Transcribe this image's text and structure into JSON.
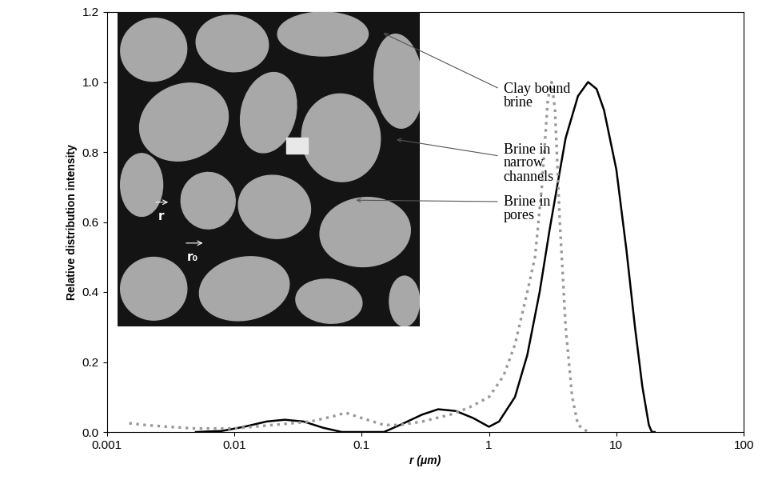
{
  "chart_data": {
    "type": "line",
    "x_label": "r (μm)",
    "y_label": "Relative distribution intensity",
    "log": "x",
    "grid": false,
    "xlim": [
      0.001,
      100
    ],
    "xticks": [
      0.001,
      0.01,
      0.1,
      1,
      10,
      100
    ],
    "ylim": [
      0,
      1.2
    ],
    "yticks": [
      {
        "value": 0,
        "label": "0.0"
      },
      {
        "value": 0.2,
        "label": "0.2"
      },
      {
        "value": 0.4,
        "label": "0.4"
      },
      {
        "value": 0.6,
        "label": "0.6"
      },
      {
        "value": 0.8,
        "label": "0.8"
      },
      {
        "value": 1.0,
        "label": "1.0"
      },
      {
        "value": 1.2,
        "label": "1.2"
      }
    ],
    "series": [
      {
        "color": "#000000",
        "line_style": "solid",
        "x": [
          0.005,
          0.008,
          0.012,
          0.018,
          0.025,
          0.035,
          0.05,
          0.07,
          0.15,
          0.2,
          0.3,
          0.4,
          0.55,
          0.75,
          1.0,
          1.2,
          1.6,
          2,
          2.5,
          3,
          3.5,
          4,
          5,
          6,
          7,
          8,
          10,
          12,
          14,
          16,
          18,
          19,
          20
        ],
        "values": [
          0.0,
          0.003,
          0.015,
          0.03,
          0.035,
          0.03,
          0.012,
          0.0,
          0.0,
          0.02,
          0.05,
          0.065,
          0.06,
          0.04,
          0.015,
          0.03,
          0.1,
          0.22,
          0.4,
          0.58,
          0.72,
          0.84,
          0.96,
          1.0,
          0.98,
          0.92,
          0.75,
          0.52,
          0.3,
          0.13,
          0.02,
          0.0,
          0.0
        ]
      },
      {
        "color": "#999999",
        "line_style": "dotted",
        "x": [
          0.0015,
          0.002,
          0.003,
          0.005,
          0.01,
          0.02,
          0.04,
          0.06,
          0.075,
          0.1,
          0.15,
          0.2,
          0.3,
          0.5,
          0.7,
          1.0,
          1.3,
          1.6,
          2.0,
          2.3,
          2.6,
          2.9,
          3.1,
          3.3,
          3.6,
          4,
          4.5,
          5,
          6
        ],
        "values": [
          0.025,
          0.02,
          0.015,
          0.01,
          0.01,
          0.02,
          0.03,
          0.045,
          0.055,
          0.04,
          0.02,
          0.02,
          0.03,
          0.05,
          0.07,
          0.1,
          0.16,
          0.25,
          0.4,
          0.5,
          0.7,
          0.95,
          1.0,
          0.92,
          0.6,
          0.3,
          0.1,
          0.02,
          0.0
        ]
      }
    ],
    "annotations": [
      {
        "text": "Clay bound\nbrine"
      },
      {
        "text": "Brine in\nnarrow\nchannels"
      },
      {
        "text": "Brine in\npores"
      },
      {
        "text": "r"
      },
      {
        "text": "r₀"
      }
    ]
  }
}
